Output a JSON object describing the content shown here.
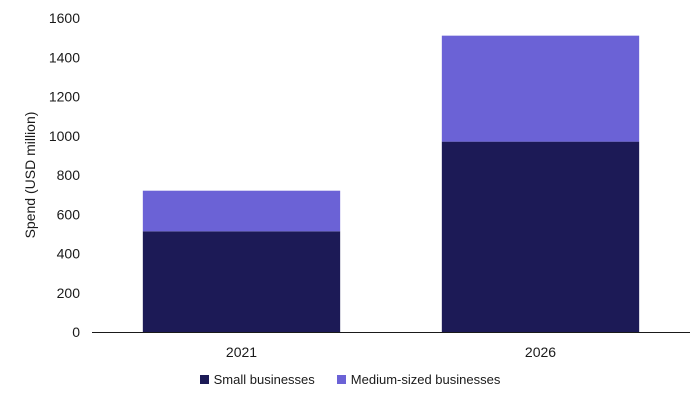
{
  "chart_data": {
    "type": "bar",
    "stacked": true,
    "categories": [
      "2021",
      "2026"
    ],
    "series": [
      {
        "name": "Small businesses",
        "values": [
          513,
          970
        ],
        "color": "#1c1a56"
      },
      {
        "name": "Medium-sized businesses",
        "values": [
          207,
          540
        ],
        "color": "#6b62d6"
      }
    ],
    "ylabel": "Spend (USD million)",
    "xlabel": "",
    "ylim": [
      0,
      1600
    ],
    "yticks": [
      0,
      200,
      400,
      600,
      800,
      1000,
      1200,
      1400,
      1600
    ],
    "grid": false,
    "legend_position": "bottom"
  }
}
